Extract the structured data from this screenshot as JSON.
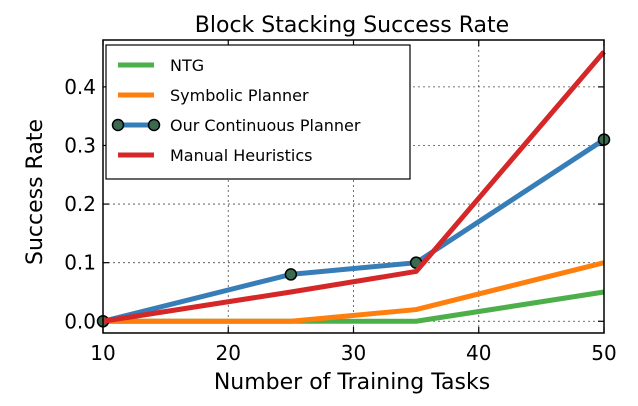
{
  "chart_data": {
    "type": "line",
    "title": "Block Stacking Success Rate",
    "xlabel": "Number of Training Tasks",
    "ylabel": "Success Rate",
    "x": [
      10,
      25,
      35,
      50
    ],
    "xlim": [
      10,
      50
    ],
    "ylim": [
      -0.02,
      0.48
    ],
    "xticks": [
      10,
      20,
      30,
      40,
      50
    ],
    "yticks": [
      0.0,
      0.1,
      0.2,
      0.3,
      0.4
    ],
    "xtick_labels": [
      "10",
      "20",
      "30",
      "40",
      "50"
    ],
    "ytick_labels": [
      "0.0",
      "0.1",
      "0.2",
      "0.3",
      "0.4"
    ],
    "grid": true,
    "legend_position": "top-left",
    "series": [
      {
        "name": "NTG",
        "color": "#4daf4a",
        "values": [
          0.0,
          0.0,
          0.0,
          0.05
        ],
        "markers": false
      },
      {
        "name": "Symbolic Planner",
        "color": "#ff7f0e",
        "values": [
          0.0,
          0.0,
          0.02,
          0.1
        ],
        "markers": false
      },
      {
        "name": "Our Continuous Planner",
        "color": "#377eb8",
        "values": [
          0.0,
          0.08,
          0.1,
          0.31
        ],
        "markers": true,
        "marker_color": "#3a6b50"
      },
      {
        "name": "Manual Heuristics",
        "color": "#d62728",
        "values": [
          0.0,
          0.05,
          0.085,
          0.46
        ],
        "markers": false
      }
    ]
  }
}
